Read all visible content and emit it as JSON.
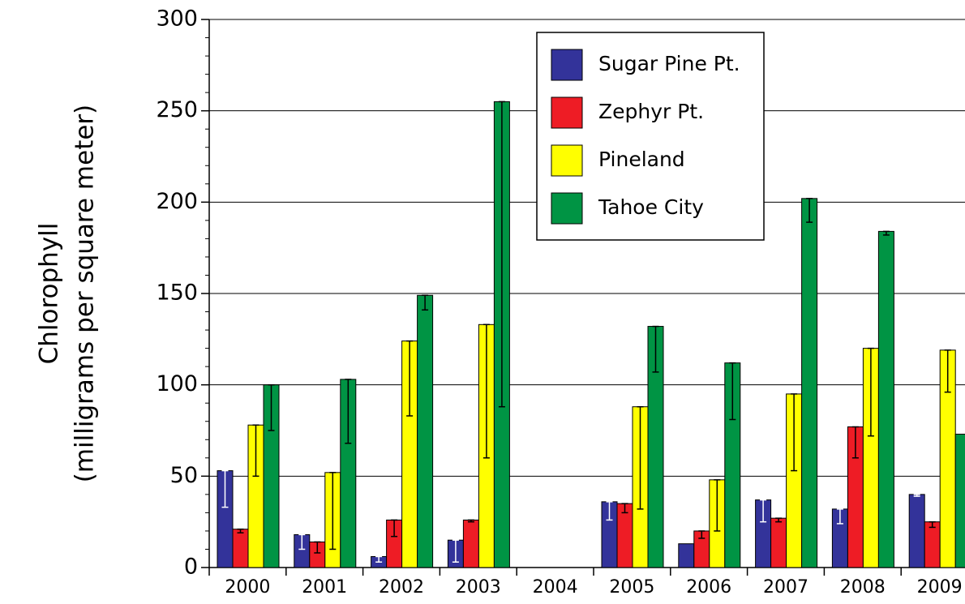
{
  "chart_data": {
    "type": "bar",
    "y_label": [
      "Chlorophyll",
      "(milligrams per square meter)"
    ],
    "categories": [
      "2000",
      "2001",
      "2002",
      "2003",
      "2004",
      "2005",
      "2006",
      "2007",
      "2008",
      "2009"
    ],
    "series": [
      {
        "name": "Sugar Pine Pt.",
        "color": "#33339a",
        "error_color": "#ffffff",
        "values": [
          53,
          18,
          6,
          15,
          null,
          36,
          13,
          37,
          32,
          40
        ],
        "errors": [
          20,
          8,
          3,
          12,
          null,
          10,
          null,
          12,
          8,
          1
        ]
      },
      {
        "name": "Zephyr Pt.",
        "color": "#ee1c25",
        "error_color": "#000000",
        "values": [
          21,
          14,
          26,
          26,
          null,
          35,
          20,
          27,
          77,
          25
        ],
        "errors": [
          2,
          6,
          9,
          1,
          null,
          5,
          4,
          2,
          17,
          3
        ]
      },
      {
        "name": "Pineland",
        "color": "#ffff00",
        "error_color": "#000000",
        "values": [
          78,
          52,
          124,
          133,
          null,
          88,
          48,
          95,
          120,
          119
        ],
        "errors": [
          28,
          42,
          41,
          73,
          null,
          56,
          28,
          42,
          48,
          23
        ]
      },
      {
        "name": "Tahoe City",
        "color": "#009444",
        "error_color": "#000000",
        "values": [
          100,
          103,
          149,
          255,
          null,
          132,
          112,
          202,
          184,
          73
        ],
        "errors": [
          25,
          35,
          8,
          167,
          null,
          25,
          31,
          13,
          2,
          null
        ]
      }
    ],
    "ylim": [
      0,
      300
    ],
    "yticks": [
      0,
      50,
      100,
      150,
      200,
      250,
      300
    ],
    "yminorticks": [
      10,
      20,
      30,
      40,
      60,
      70,
      80,
      90,
      110,
      120,
      130,
      140,
      160,
      170,
      180,
      190,
      210,
      220,
      230,
      240,
      260,
      270,
      280,
      290
    ],
    "grid": true,
    "legend": "top-right"
  }
}
